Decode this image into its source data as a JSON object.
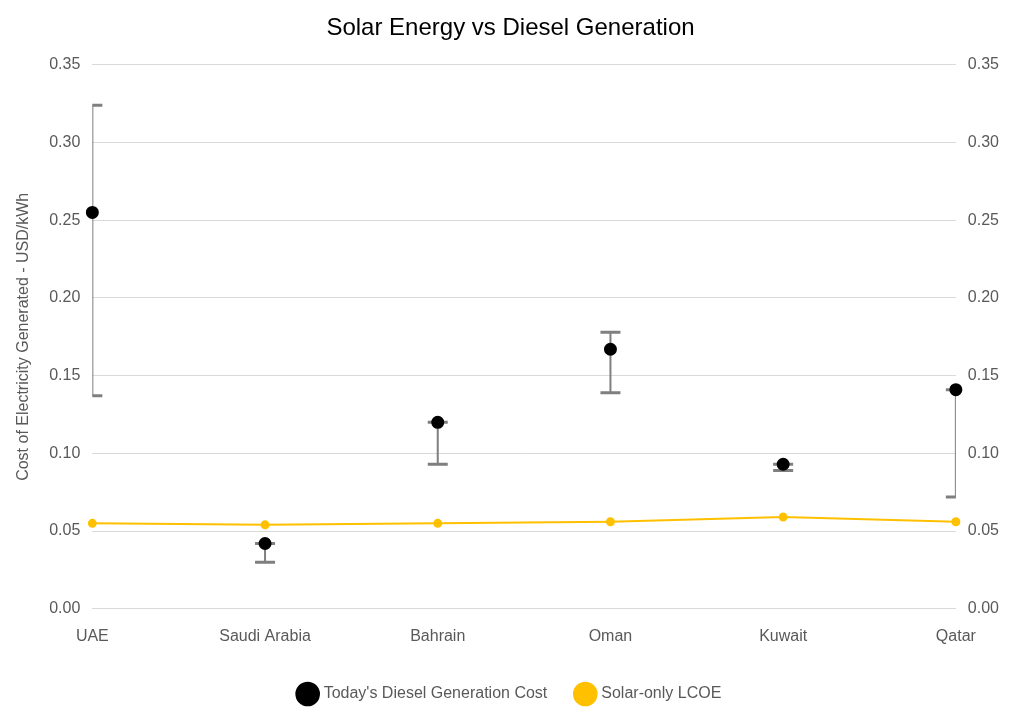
{
  "chart_data": {
    "type": "line",
    "title": "Solar Energy vs Diesel Generation",
    "y_label": "Cost of Electricity Generated - USD/kWh",
    "categories": [
      "UAE",
      "Saudi Arabia",
      "Bahrain",
      "Oman",
      "Kuwait",
      "Qatar"
    ],
    "series": [
      {
        "name": "Solar-only LCOE",
        "color": "#ffc000",
        "marker": "circle",
        "line_style": "solid",
        "values": [
          0.055,
          0.054,
          0.055,
          0.056,
          0.059,
          0.056
        ]
      },
      {
        "name": "Today's Diesel Generation Cost",
        "color": "#000000",
        "marker": "circle",
        "line_style": "none",
        "axis": "y2",
        "values": [
          0.255,
          0.042,
          0.12,
          0.167,
          0.093,
          0.141
        ],
        "error_low": [
          0.137,
          0.03,
          0.093,
          0.139,
          0.089,
          0.072
        ],
        "error_high": [
          0.324,
          0.042,
          0.12,
          0.178,
          0.093,
          0.141
        ]
      }
    ],
    "ylim": [
      0,
      0.35
    ],
    "yticks": [
      {
        "value": 0,
        "label": "0.00"
      },
      {
        "value": 0.05,
        "label": "0.05"
      },
      {
        "value": 0.1,
        "label": "0.10"
      },
      {
        "value": 0.15,
        "label": "0.15"
      },
      {
        "value": 0.2,
        "label": "0.20"
      },
      {
        "value": 0.25,
        "label": "0.25"
      },
      {
        "value": 0.3,
        "label": "0.30"
      },
      {
        "value": 0.35,
        "label": "0.35"
      }
    ],
    "y2lim": [
      0,
      0.35
    ],
    "y2ticks": [
      {
        "value": 0,
        "label": "0.00"
      },
      {
        "value": 0.05,
        "label": "0.05"
      },
      {
        "value": 0.1,
        "label": "0.10"
      },
      {
        "value": 0.15,
        "label": "0.15"
      },
      {
        "value": 0.2,
        "label": "0.20"
      },
      {
        "value": 0.25,
        "label": "0.25"
      },
      {
        "value": 0.3,
        "label": "0.30"
      },
      {
        "value": 0.35,
        "label": "0.35"
      }
    ],
    "grid": true,
    "legend": "bottom"
  }
}
